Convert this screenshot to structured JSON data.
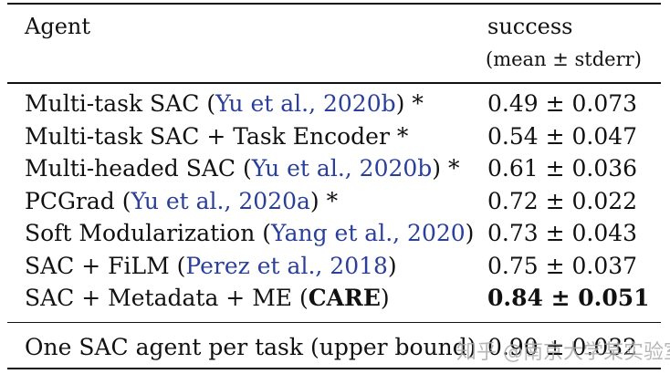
{
  "header": {
    "agent": "Agent",
    "success": "success",
    "success_sub": "(mean ± stderr)"
  },
  "rows": [
    {
      "pre": "Multi-task SAC (",
      "cite": "Yu et al., 2020b",
      "post": ") *",
      "score": "0.49 ± 0.073"
    },
    {
      "pre": "Multi-task SAC + Task Encoder *",
      "cite": "",
      "post": "",
      "score": "0.54 ± 0.047"
    },
    {
      "pre": "Multi-headed SAC (",
      "cite": "Yu et al., 2020b",
      "post": ") *",
      "score": "0.61 ± 0.036"
    },
    {
      "pre": "PCGrad (",
      "cite": "Yu et al., 2020a",
      "post": ") *",
      "score": "0.72 ± 0.022"
    },
    {
      "pre": "Soft Modularization (",
      "cite": "Yang et al., 2020",
      "post": ")",
      "score": "0.73 ± 0.043"
    },
    {
      "pre": "SAC + FiLM (",
      "cite": "Perez et al., 2018",
      "post": ")",
      "score": "0.75 ± 0.037"
    },
    {
      "pre": "SAC + Metadata + ME (",
      "bold": "CARE",
      "post": ")",
      "score": "0.84 ± 0.051"
    }
  ],
  "footer_row": {
    "agent": "One SAC agent per task (upper bound)",
    "score": "0.90 ± 0.032"
  },
  "watermark": "知乎 @南京大学某实验室"
}
